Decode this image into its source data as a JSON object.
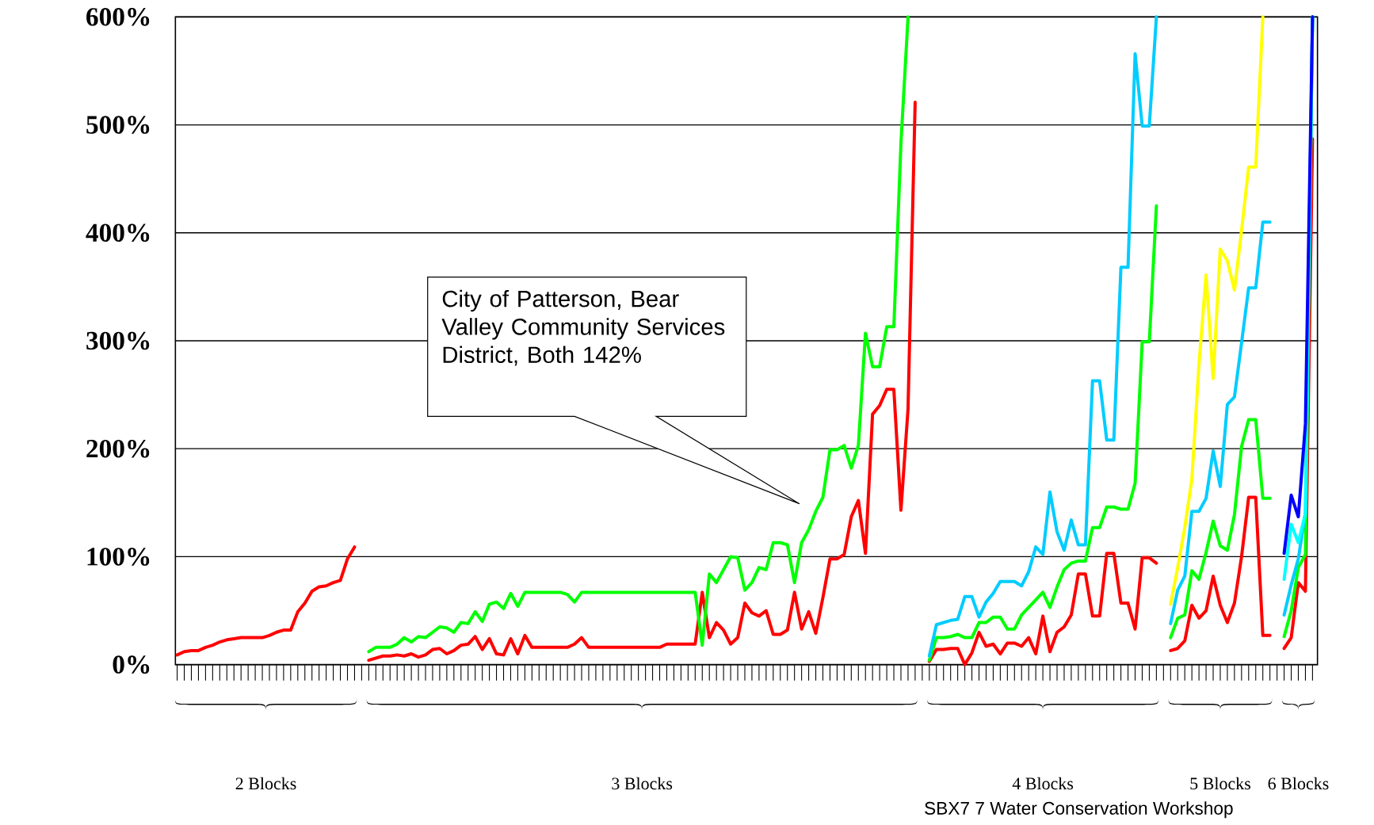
{
  "chart_data": {
    "type": "line",
    "categories": [
      null,
      null,
      null,
      null,
      null,
      null,
      null,
      null,
      null,
      null,
      null,
      null,
      null,
      null,
      null,
      null,
      null,
      null,
      null,
      null,
      null,
      null,
      null,
      null,
      null,
      null,
      null,
      null,
      null,
      null,
      null,
      null,
      null,
      null,
      null,
      null,
      null,
      null,
      null,
      null,
      null,
      null,
      null,
      null,
      null,
      null,
      null,
      null,
      null,
      null,
      null,
      null,
      null,
      null,
      null,
      null,
      null,
      null,
      null,
      null,
      null,
      null,
      null,
      null,
      null,
      null,
      null,
      null,
      null,
      null,
      null,
      null,
      null,
      null,
      null,
      null,
      null,
      null,
      null,
      null,
      null,
      null,
      null,
      null,
      null,
      null,
      null,
      null,
      null,
      null,
      null,
      null,
      null,
      null,
      null,
      null,
      null,
      null,
      null,
      null,
      null,
      null,
      null,
      null,
      null,
      null,
      null,
      null,
      null,
      null,
      null,
      null,
      null,
      null,
      null,
      null,
      null,
      null,
      null,
      null,
      null,
      null,
      null,
      null,
      null,
      null,
      null,
      null,
      null,
      null,
      null,
      null,
      null,
      null,
      null,
      null,
      null,
      null,
      null,
      null,
      null,
      null,
      null,
      null,
      null,
      null,
      null,
      null,
      null,
      null,
      null,
      null,
      null,
      null,
      null,
      null,
      null,
      null,
      null,
      null,
      null
    ],
    "series": [
      {
        "color": "#ff0000",
        "values": [
          9,
          12,
          13,
          13,
          16,
          18,
          21,
          23,
          24,
          25,
          25,
          25,
          25,
          27,
          30,
          32,
          32,
          49,
          57,
          68,
          72,
          73,
          76,
          78,
          98,
          109,
          null,
          4,
          6,
          8,
          8,
          9,
          8,
          10,
          7,
          9,
          14,
          15,
          10,
          13,
          18,
          19,
          26,
          14,
          24,
          10,
          9,
          24,
          10,
          27,
          16,
          16,
          16,
          16,
          16,
          16,
          19,
          25,
          16,
          16,
          16,
          16,
          16,
          16,
          16,
          16,
          16,
          16,
          16,
          19,
          19,
          19,
          19,
          19,
          67,
          25,
          39,
          32,
          19,
          25,
          57,
          48,
          45,
          50,
          28,
          28,
          32,
          67,
          33,
          49,
          29,
          62,
          98,
          98,
          102,
          137,
          152,
          103,
          232,
          240,
          255,
          255,
          143,
          237,
          521,
          null,
          3,
          14,
          14,
          15,
          15,
          0,
          11,
          30,
          17,
          19,
          10,
          20,
          20,
          17,
          25,
          10,
          45,
          12,
          30,
          35,
          46,
          84,
          84,
          45,
          45,
          103,
          103,
          57,
          57,
          33,
          99,
          99,
          94,
          null,
          13,
          15,
          22,
          55,
          43,
          50,
          82,
          55,
          39,
          57,
          100,
          155,
          155,
          27,
          27,
          null,
          15,
          25,
          76,
          68,
          487
        ]
      },
      {
        "color": "#00ff00",
        "values": [
          null,
          null,
          null,
          null,
          null,
          null,
          null,
          null,
          null,
          null,
          null,
          null,
          null,
          null,
          null,
          null,
          null,
          null,
          null,
          null,
          null,
          null,
          null,
          null,
          null,
          null,
          null,
          12,
          16,
          16,
          16,
          19,
          25,
          21,
          26,
          25,
          30,
          35,
          34,
          30,
          39,
          38,
          49,
          40,
          56,
          58,
          52,
          66,
          54,
          67,
          67,
          67,
          67,
          67,
          67,
          65,
          58,
          67,
          67,
          67,
          67,
          67,
          67,
          67,
          67,
          67,
          67,
          67,
          67,
          67,
          67,
          67,
          67,
          67,
          18,
          84,
          76,
          88,
          100,
          99,
          69,
          76,
          90,
          88,
          113,
          113,
          111,
          76,
          113,
          125,
          142,
          155,
          199,
          199,
          203,
          182,
          203,
          307,
          276,
          276,
          313,
          313,
          483,
          600,
          null,
          null,
          4,
          25,
          25,
          26,
          28,
          25,
          25,
          39,
          39,
          44,
          44,
          33,
          33,
          46,
          53,
          60,
          67,
          53,
          72,
          88,
          94,
          96,
          96,
          127,
          127,
          146,
          146,
          144,
          144,
          168,
          299,
          299,
          425,
          null,
          25,
          43,
          46,
          87,
          79,
          104,
          133,
          110,
          106,
          139,
          202,
          227,
          227,
          154,
          154,
          null,
          26,
          50,
          90,
          102,
          600
        ]
      },
      {
        "color": "#00ccff",
        "values": [
          null,
          null,
          null,
          null,
          null,
          null,
          null,
          null,
          null,
          null,
          null,
          null,
          null,
          null,
          null,
          null,
          null,
          null,
          null,
          null,
          null,
          null,
          null,
          null,
          null,
          null,
          null,
          null,
          null,
          null,
          null,
          null,
          null,
          null,
          null,
          null,
          null,
          null,
          null,
          null,
          null,
          null,
          null,
          null,
          null,
          null,
          null,
          null,
          null,
          null,
          null,
          null,
          null,
          null,
          null,
          null,
          null,
          null,
          null,
          null,
          null,
          null,
          null,
          null,
          null,
          null,
          null,
          null,
          null,
          null,
          null,
          null,
          null,
          null,
          null,
          null,
          null,
          null,
          null,
          null,
          null,
          null,
          null,
          null,
          null,
          null,
          null,
          null,
          null,
          null,
          null,
          null,
          null,
          null,
          null,
          null,
          null,
          null,
          null,
          null,
          null,
          null,
          null,
          null,
          null,
          null,
          8,
          37,
          39,
          41,
          42,
          63,
          63,
          44,
          58,
          66,
          77,
          77,
          77,
          73,
          86,
          109,
          102,
          160,
          123,
          106,
          134,
          111,
          111,
          263,
          263,
          208,
          208,
          368,
          368,
          566,
          499,
          499,
          600,
          null,
          38,
          69,
          82,
          142,
          142,
          154,
          198,
          165,
          241,
          248,
          298,
          349,
          349,
          410,
          410,
          null,
          46,
          74,
          98,
          141,
          600
        ]
      },
      {
        "color": "#ffff00",
        "values": [
          null,
          null,
          null,
          null,
          null,
          null,
          null,
          null,
          null,
          null,
          null,
          null,
          null,
          null,
          null,
          null,
          null,
          null,
          null,
          null,
          null,
          null,
          null,
          null,
          null,
          null,
          null,
          null,
          null,
          null,
          null,
          null,
          null,
          null,
          null,
          null,
          null,
          null,
          null,
          null,
          null,
          null,
          null,
          null,
          null,
          null,
          null,
          null,
          null,
          null,
          null,
          null,
          null,
          null,
          null,
          null,
          null,
          null,
          null,
          null,
          null,
          null,
          null,
          null,
          null,
          null,
          null,
          null,
          null,
          null,
          null,
          null,
          null,
          null,
          null,
          null,
          null,
          null,
          null,
          null,
          null,
          null,
          null,
          null,
          null,
          null,
          null,
          null,
          null,
          null,
          null,
          null,
          null,
          null,
          null,
          null,
          null,
          null,
          null,
          null,
          null,
          null,
          null,
          null,
          null,
          null,
          null,
          null,
          null,
          null,
          null,
          null,
          null,
          null,
          null,
          null,
          null,
          null,
          null,
          null,
          null,
          null,
          null,
          null,
          null,
          null,
          null,
          null,
          null,
          null,
          null,
          null,
          null,
          null,
          null,
          null,
          null,
          null,
          null,
          null,
          56,
          90,
          127,
          172,
          278,
          361,
          265,
          385,
          374,
          347,
          402,
          461,
          461,
          600,
          null,
          null,
          null,
          null,
          null,
          null,
          null
        ]
      },
      {
        "color": "#00ffff",
        "values": [
          null,
          null,
          null,
          null,
          null,
          null,
          null,
          null,
          null,
          null,
          null,
          null,
          null,
          null,
          null,
          null,
          null,
          null,
          null,
          null,
          null,
          null,
          null,
          null,
          null,
          null,
          null,
          null,
          null,
          null,
          null,
          null,
          null,
          null,
          null,
          null,
          null,
          null,
          null,
          null,
          null,
          null,
          null,
          null,
          null,
          null,
          null,
          null,
          null,
          null,
          null,
          null,
          null,
          null,
          null,
          null,
          null,
          null,
          null,
          null,
          null,
          null,
          null,
          null,
          null,
          null,
          null,
          null,
          null,
          null,
          null,
          null,
          null,
          null,
          null,
          null,
          null,
          null,
          null,
          null,
          null,
          null,
          null,
          null,
          null,
          null,
          null,
          null,
          null,
          null,
          null,
          null,
          null,
          null,
          null,
          null,
          null,
          null,
          null,
          null,
          null,
          null,
          null,
          null,
          null,
          null,
          null,
          null,
          null,
          null,
          null,
          null,
          null,
          null,
          null,
          null,
          null,
          null,
          null,
          null,
          null,
          null,
          null,
          null,
          null,
          null,
          null,
          null,
          null,
          null,
          null,
          null,
          null,
          null,
          null,
          null,
          null,
          null,
          null,
          null,
          null,
          null,
          null,
          null,
          null,
          null,
          null,
          null,
          null,
          null,
          null,
          null,
          null,
          null,
          null,
          null,
          79,
          130,
          113,
          140,
          600
        ]
      },
      {
        "color": "#0000ff",
        "values": [
          null,
          null,
          null,
          null,
          null,
          null,
          null,
          null,
          null,
          null,
          null,
          null,
          null,
          null,
          null,
          null,
          null,
          null,
          null,
          null,
          null,
          null,
          null,
          null,
          null,
          null,
          null,
          null,
          null,
          null,
          null,
          null,
          null,
          null,
          null,
          null,
          null,
          null,
          null,
          null,
          null,
          null,
          null,
          null,
          null,
          null,
          null,
          null,
          null,
          null,
          null,
          null,
          null,
          null,
          null,
          null,
          null,
          null,
          null,
          null,
          null,
          null,
          null,
          null,
          null,
          null,
          null,
          null,
          null,
          null,
          null,
          null,
          null,
          null,
          null,
          null,
          null,
          null,
          null,
          null,
          null,
          null,
          null,
          null,
          null,
          null,
          null,
          null,
          null,
          null,
          null,
          null,
          null,
          null,
          null,
          null,
          null,
          null,
          null,
          null,
          null,
          null,
          null,
          null,
          null,
          null,
          null,
          null,
          null,
          null,
          null,
          null,
          null,
          null,
          null,
          null,
          null,
          null,
          null,
          null,
          null,
          null,
          null,
          null,
          null,
          null,
          null,
          null,
          null,
          null,
          null,
          null,
          null,
          null,
          null,
          null,
          null,
          null,
          null,
          null,
          null,
          null,
          null,
          null,
          null,
          null,
          null,
          null,
          null,
          null,
          null,
          null,
          null,
          null,
          null,
          null,
          103,
          157,
          137,
          223,
          600
        ]
      }
    ],
    "ylim": [
      0,
      600
    ],
    "yticks": [
      {
        "value": 0,
        "label": "0%"
      },
      {
        "value": 100,
        "label": "100%"
      },
      {
        "value": 200,
        "label": "200%"
      },
      {
        "value": 300,
        "label": "300%"
      },
      {
        "value": 400,
        "label": "400%"
      },
      {
        "value": 500,
        "label": "500%"
      },
      {
        "value": 600,
        "label": "600%"
      }
    ],
    "grid": "y",
    "annotations": [
      "2 Blocks",
      "3 Blocks",
      "4 Blocks",
      "5 Blocks",
      "6 Blocks",
      "City of Patterson, Bear Valley Community Services District, Both 142%",
      "SBX7 7 Water Conservation Workshop"
    ]
  }
}
